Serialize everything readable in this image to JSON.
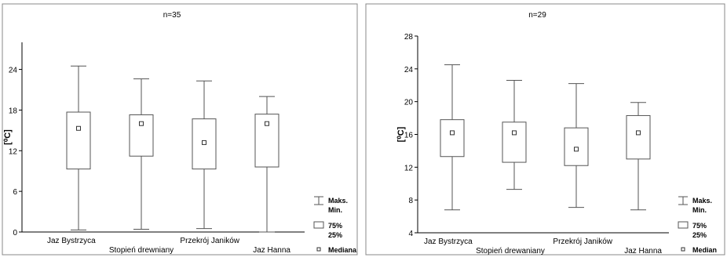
{
  "chart_data": [
    {
      "type": "box",
      "title": "n=35",
      "ylabel": "[⁰C]",
      "ylim": [
        0,
        28
      ],
      "yticks": [
        "0",
        "6",
        "12",
        "18",
        "24"
      ],
      "grid": false,
      "legend_position": "bottom-right",
      "categories": [
        "Jaz Bystrzyca",
        "Stopień drewniany",
        "Przekrój Janików",
        "Jaz Hanna"
      ],
      "series": [
        {
          "values": [
            {
              "max": 24.5,
              "q3": 17.7,
              "median": 15.3,
              "q1": 9.3,
              "min": 0.3
            },
            {
              "max": 22.6,
              "q3": 17.3,
              "median": 16.0,
              "q1": 11.2,
              "min": 0.4
            },
            {
              "max": 22.3,
              "q3": 16.7,
              "median": 13.2,
              "q1": 9.3,
              "min": 0.5
            },
            {
              "max": 20.0,
              "q3": 17.4,
              "median": 16.0,
              "q1": 9.6,
              "min": 0.0
            }
          ]
        }
      ],
      "legend": {
        "whisker_max": "Maks.",
        "whisker_min": "Min.",
        "box_high": "75%",
        "box_low": "25%",
        "median": "Mediana"
      }
    },
    {
      "type": "box",
      "title": "n=29",
      "ylabel": "[⁰C]",
      "ylim": [
        4,
        28
      ],
      "yticks": [
        "4",
        "8",
        "12",
        "16",
        "20",
        "24",
        "28"
      ],
      "grid": false,
      "legend_position": "bottom-right",
      "categories": [
        "Jaz Bystrzyca",
        "Stopień drewaniany",
        "Przekrój Janików",
        "Jaz Hanna"
      ],
      "series": [
        {
          "values": [
            {
              "max": 24.5,
              "q3": 17.8,
              "median": 16.2,
              "q1": 13.3,
              "min": 6.8
            },
            {
              "max": 22.6,
              "q3": 17.5,
              "median": 16.2,
              "q1": 12.6,
              "min": 9.3
            },
            {
              "max": 22.2,
              "q3": 16.8,
              "median": 14.2,
              "q1": 12.2,
              "min": 7.1
            },
            {
              "max": 19.9,
              "q3": 18.3,
              "median": 16.2,
              "q1": 13.0,
              "min": 6.8
            }
          ]
        }
      ],
      "legend": {
        "whisker_max": "Maks.",
        "whisker_min": "Min.",
        "box_high": "75%",
        "box_low": "25%",
        "median": "Median"
      }
    }
  ]
}
